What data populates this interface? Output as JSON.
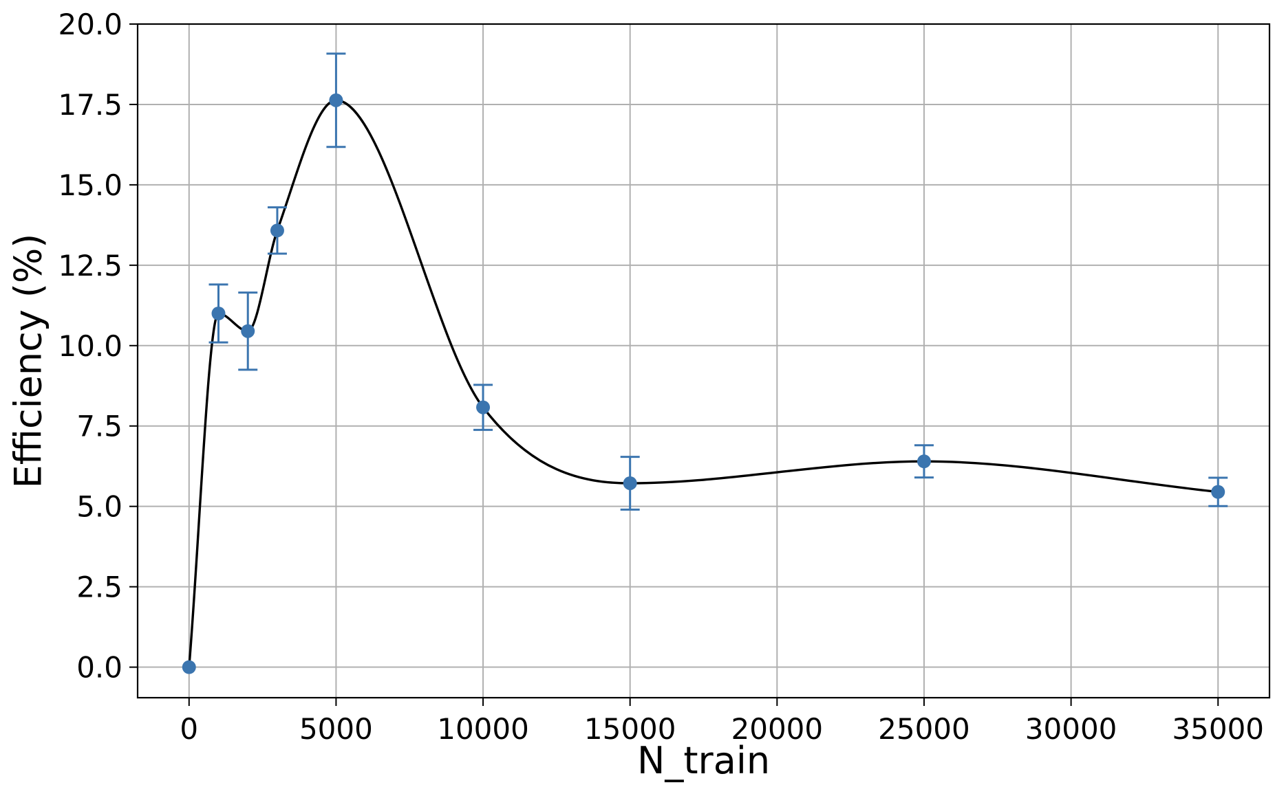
{
  "chart_data": {
    "type": "line",
    "title": "",
    "xlabel": "N_train",
    "ylabel": "Efficiency (%)",
    "xlim": [
      -1750,
      36750
    ],
    "ylim": [
      -0.95,
      20.0
    ],
    "x_ticks": [
      0,
      5000,
      10000,
      15000,
      20000,
      25000,
      30000,
      35000
    ],
    "x_tick_labels": [
      "0",
      "5000",
      "10000",
      "15000",
      "20000",
      "25000",
      "30000",
      "35000"
    ],
    "y_ticks": [
      0.0,
      2.5,
      5.0,
      7.5,
      10.0,
      12.5,
      15.0,
      17.5,
      20.0
    ],
    "y_tick_labels": [
      "0.0",
      "2.5",
      "5.0",
      "7.5",
      "10.0",
      "12.5",
      "15.0",
      "17.5",
      "20.0"
    ],
    "grid": true,
    "legend": "none",
    "series": [
      {
        "points": [
          {
            "x": 0,
            "y": 0.0,
            "err": 0.0
          },
          {
            "x": 1000,
            "y": 11.0,
            "err": 0.9
          },
          {
            "x": 2000,
            "y": 10.45,
            "err": 1.2
          },
          {
            "x": 3000,
            "y": 13.58,
            "err": 0.72
          },
          {
            "x": 5000,
            "y": 17.63,
            "err": 1.45
          },
          {
            "x": 10000,
            "y": 8.08,
            "err": 0.7
          },
          {
            "x": 15000,
            "y": 5.72,
            "err": 0.82
          },
          {
            "x": 25000,
            "y": 6.4,
            "err": 0.5
          },
          {
            "x": 35000,
            "y": 5.45,
            "err": 0.44
          }
        ],
        "marker_color": "#3b75af",
        "fit_curve_color": "#000000"
      }
    ]
  }
}
